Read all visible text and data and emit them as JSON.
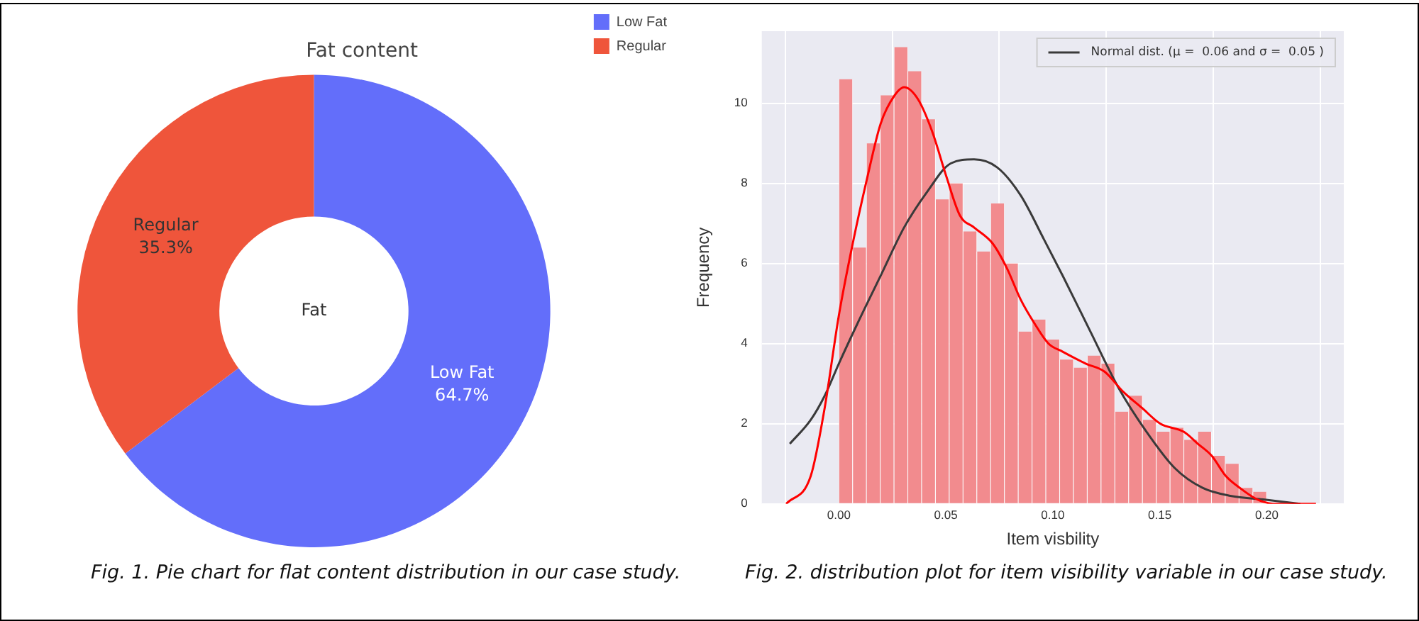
{
  "chart_data": [
    {
      "type": "donut",
      "title": "Fat content",
      "categories": [
        "Low Fat",
        "Regular"
      ],
      "values": [
        64.7,
        35.3
      ],
      "colors": [
        "#636efa",
        "#ef553b"
      ],
      "value_labels": [
        "64.7%",
        "35.3%"
      ],
      "legend": "top right",
      "annotations": [
        "Fat",
        "Fig. 1. Pie chart for flat content distribution in our case study."
      ]
    },
    {
      "type": "histogram",
      "xlabel": "Item visbility",
      "ylabel": "Frequency",
      "bins": [
        0,
        0.00645,
        0.0129,
        0.01935,
        0.0258,
        0.03225,
        0.0387,
        0.04515,
        0.0516,
        0.05805,
        0.0645,
        0.07095,
        0.0774,
        0.08385,
        0.0903,
        0.09675,
        0.1032,
        0.10965,
        0.1161,
        0.12255,
        0.129,
        0.13545,
        0.1419,
        0.14835,
        0.1548,
        0.16125,
        0.1677,
        0.17415,
        0.1806,
        0.18705,
        0.1935,
        0.19995
      ],
      "series": [
        {
          "type": "histogram",
          "color": "#f28b8e",
          "values": [
            10.6,
            6.4,
            9.0,
            10.2,
            11.4,
            10.8,
            9.6,
            7.6,
            8.0,
            6.8,
            6.3,
            7.5,
            6.0,
            4.3,
            4.6,
            4.1,
            3.6,
            3.4,
            3.7,
            3.5,
            2.3,
            2.7,
            2.1,
            1.8,
            1.9,
            1.6,
            1.8,
            1.2,
            1.0,
            0.4,
            0.3
          ]
        },
        {
          "type": "line",
          "color": "#ff0000",
          "x": [
            -0.0246,
            -0.0131,
            -0.0066,
            0,
            0.0065,
            0.0131,
            0.0196,
            0.0261,
            0.0305,
            0.037,
            0.0436,
            0.0501,
            0.0566,
            0.0632,
            0.0719,
            0.0784,
            0.085,
            0.0915,
            0.098,
            0.1046,
            0.1155,
            0.1242,
            0.1329,
            0.1416,
            0.1503,
            0.1612,
            0.1678,
            0.1743,
            0.1808,
            0.1874,
            0.196,
            0.2047,
            0.223
          ],
          "values": [
            0.0,
            0.7,
            2.4,
            4.7,
            6.5,
            8.1,
            9.5,
            10.2,
            10.4,
            10.1,
            9.3,
            8.2,
            7.2,
            6.9,
            6.5,
            5.9,
            5.1,
            4.5,
            4.0,
            3.8,
            3.5,
            3.3,
            2.8,
            2.4,
            2.0,
            1.8,
            1.5,
            1.2,
            0.7,
            0.4,
            0.1,
            0.0,
            0.0
          ]
        },
        {
          "type": "line",
          "name": "Normal dist. (μ =  0.06 and σ =  0.05 )",
          "color": "#3a3a3a",
          "x": [
            -0.0229,
            -0.0131,
            -0.0066,
            0,
            0.0087,
            0.0196,
            0.0305,
            0.0414,
            0.0523,
            0.0632,
            0.074,
            0.085,
            0.0959,
            0.1046,
            0.1176,
            0.1307,
            0.1438,
            0.1569,
            0.17,
            0.183,
            0.2004,
            0.2157
          ],
          "values": [
            1.5,
            2.1,
            2.7,
            3.5,
            4.5,
            5.7,
            6.9,
            7.8,
            8.5,
            8.6,
            8.4,
            7.7,
            6.6,
            5.7,
            4.3,
            2.9,
            1.8,
            0.9,
            0.4,
            0.2,
            0.1,
            0.0
          ]
        }
      ],
      "xlim": [
        -0.036,
        0.236
      ],
      "ylim": [
        0,
        11.8
      ],
      "xticks": [
        {
          "value": 0,
          "label": "0.00"
        },
        {
          "value": 0.05,
          "label": "0.05"
        },
        {
          "value": 0.1,
          "label": "0.10"
        },
        {
          "value": 0.15,
          "label": "0.15"
        },
        {
          "value": 0.2,
          "label": "0.20"
        }
      ],
      "yticks": [
        0,
        2,
        4,
        6,
        8,
        10
      ],
      "grid": true,
      "legend": "top right",
      "annotations": [
        "Fig. 2. distribution plot for item visibility variable in our case study."
      ]
    }
  ]
}
